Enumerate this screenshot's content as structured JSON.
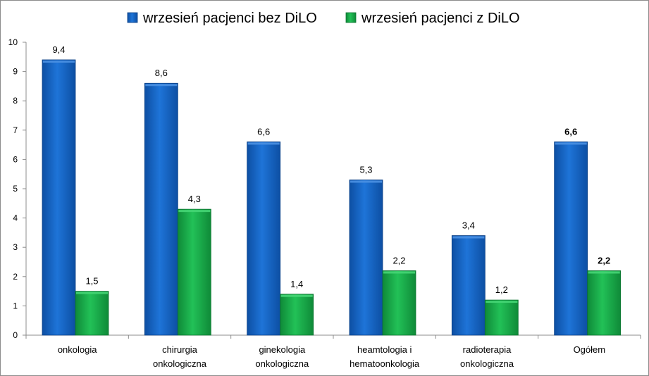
{
  "chart_data": {
    "type": "bar",
    "title": "",
    "xlabel": "",
    "ylabel": "",
    "ylim": [
      0,
      10
    ],
    "yticks": [
      "0",
      "1",
      "2",
      "3",
      "4",
      "5",
      "6",
      "7",
      "8",
      "9",
      "10"
    ],
    "grid": false,
    "legend_position": "top",
    "categories": [
      [
        "onkologia"
      ],
      [
        "chirurgia",
        "onkologiczna"
      ],
      [
        "ginekologia",
        "onkologiczna"
      ],
      [
        "heamtologia i",
        "hematoonkologia"
      ],
      [
        "radioterapia",
        "onkologiczna"
      ],
      [
        "Ogółem"
      ]
    ],
    "series": [
      {
        "name": "wrzesień pacjenci bez DiLO",
        "color": "#1565C0",
        "color_light": "#4a90e2",
        "values": [
          9.4,
          8.6,
          6.6,
          5.3,
          3.4,
          6.6
        ],
        "labels": [
          "9,4",
          "8,6",
          "6,6",
          "5,3",
          "3,4",
          "6,6"
        ]
      },
      {
        "name": "wrzesień pacjenci z DiLO",
        "color": "#17A347",
        "color_light": "#45d574",
        "values": [
          1.5,
          4.3,
          1.4,
          2.2,
          1.2,
          2.2
        ],
        "labels": [
          "1,5",
          "4,3",
          "1,4",
          "2,2",
          "1,2",
          "2,2"
        ]
      }
    ],
    "bold_label_category_index": 5
  }
}
